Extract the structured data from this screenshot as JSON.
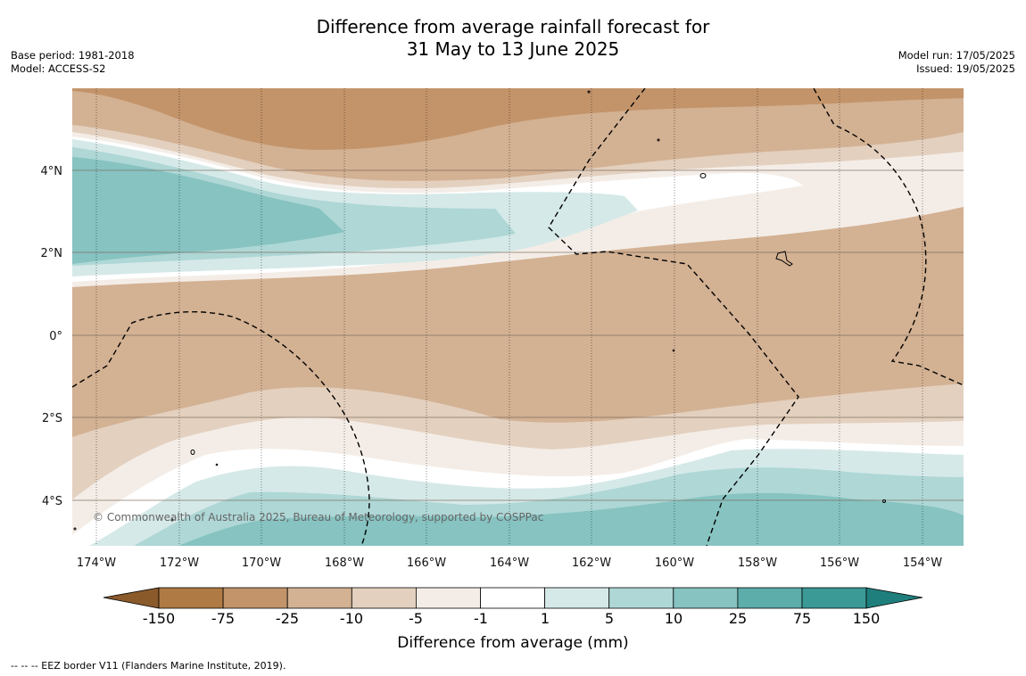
{
  "title": {
    "line1": "Difference from average rainfall forecast for",
    "line2": "31 May to 13 June 2025"
  },
  "meta_left": {
    "base_period": "Base period: 1981-2018",
    "model": "Model: ACCESS-S2"
  },
  "meta_right": {
    "model_run": "Model run: 17/05/2025",
    "issued": "Issued: 19/05/2025"
  },
  "map": {
    "lat_labels": [
      "4°N",
      "2°N",
      "0°",
      "2°S",
      "4°S"
    ],
    "lon_labels": [
      "174°W",
      "172°W",
      "170°W",
      "168°W",
      "166°W",
      "164°W",
      "162°W",
      "160°W",
      "158°W",
      "156°W",
      "154°W"
    ],
    "copyright": "© Commonwealth of Australia 2025, Bureau of Meteorology, supported by COSPPac"
  },
  "colorbar": {
    "title": "Difference from average (mm)",
    "ticks": [
      "-150",
      "-75",
      "-25",
      "-10",
      "-5",
      "-1",
      "1",
      "5",
      "10",
      "25",
      "75",
      "150"
    ],
    "colors": [
      "#8b5a2b",
      "#b07a44",
      "#c3946a",
      "#d3b193",
      "#e3d0bf",
      "#f4ede7",
      "#ffffff",
      "#d5e9e8",
      "#aed7d6",
      "#86c3c1",
      "#5dadab",
      "#3b9996",
      "#1f7f7c"
    ]
  },
  "footnote": "--  --  -- EEZ border V11 (Flanders Marine Institute, 2019)."
}
